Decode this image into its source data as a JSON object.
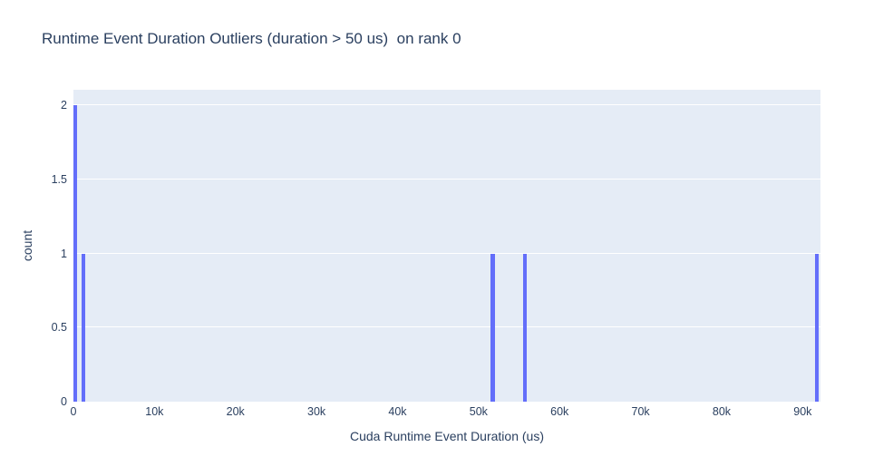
{
  "chart_data": {
    "type": "bar",
    "subtype": "histogram",
    "title": "Runtime Event Duration Outliers (duration > 50 us)  on rank 0",
    "xlabel": "Cuda Runtime Event Duration (us)",
    "ylabel": "count",
    "xlim": [
      0,
      92200
    ],
    "ylim": [
      0,
      2.105
    ],
    "grid": "horizontal-only",
    "legend_position": "none",
    "x_ticks": [
      {
        "value": 0,
        "label": "0"
      },
      {
        "value": 10000,
        "label": "10k"
      },
      {
        "value": 20000,
        "label": "20k"
      },
      {
        "value": 30000,
        "label": "30k"
      },
      {
        "value": 40000,
        "label": "40k"
      },
      {
        "value": 50000,
        "label": "50k"
      },
      {
        "value": 60000,
        "label": "60k"
      },
      {
        "value": 70000,
        "label": "70k"
      },
      {
        "value": 80000,
        "label": "80k"
      },
      {
        "value": 90000,
        "label": "90k"
      }
    ],
    "y_ticks": [
      {
        "value": 0,
        "label": "0"
      },
      {
        "value": 0.5,
        "label": "0.5"
      },
      {
        "value": 1,
        "label": "1"
      },
      {
        "value": 1.5,
        "label": "1.5"
      },
      {
        "value": 2,
        "label": "2"
      }
    ],
    "bars": [
      {
        "bin_start": 0,
        "bin_end": 500,
        "count": 2
      },
      {
        "bin_start": 1000,
        "bin_end": 1500,
        "count": 1
      },
      {
        "bin_start": 51500,
        "bin_end": 52000,
        "count": 1
      },
      {
        "bin_start": 55500,
        "bin_end": 56000,
        "count": 1
      },
      {
        "bin_start": 91500,
        "bin_end": 92000,
        "count": 1
      }
    ],
    "colors": {
      "bar": "#636efa",
      "plot_background": "#e5ecf6",
      "gridline": "#ffffff",
      "text": "#2a3f5f",
      "page_background": "#ffffff"
    }
  }
}
